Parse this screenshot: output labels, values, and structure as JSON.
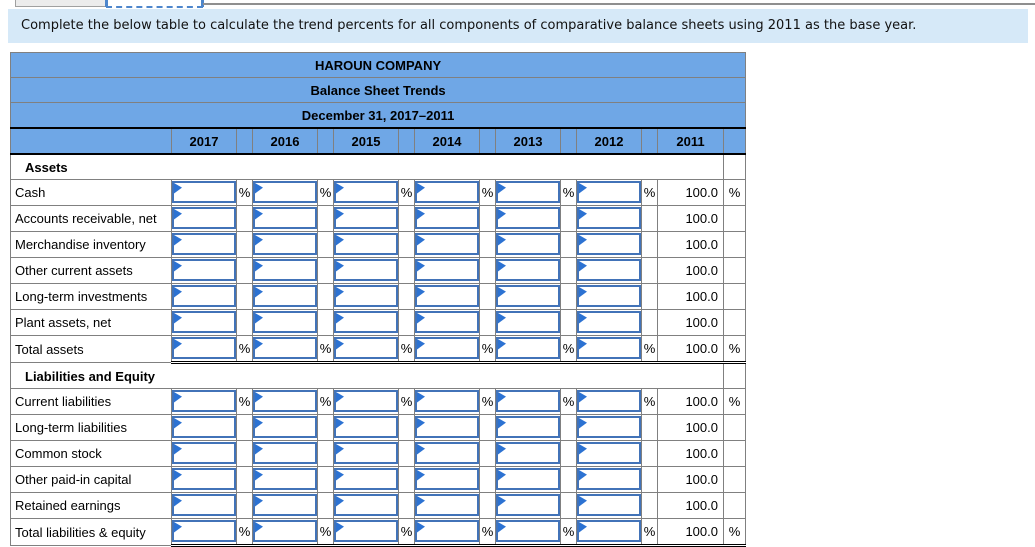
{
  "top_fragments": {
    "has_partial_panel": true,
    "has_dashed_selection": true,
    "divider_color": "#8f8f8f"
  },
  "instruction": {
    "text": "Complete the below table to calculate the trend percents for all components of comparative balance sheets using 2011 as the base year.",
    "background": "#d6e9f8"
  },
  "table": {
    "title": "HAROUN COMPANY",
    "subtitle": "Balance Sheet Trends",
    "period": "December 31, 2017–2011",
    "header_color": "#6fa7e6",
    "input_border_color": "#4273b8",
    "marker_color": "#2c72d2",
    "grid_color": "#808080",
    "years": [
      "2017",
      "2016",
      "2015",
      "2014",
      "2013",
      "2012",
      "2011"
    ],
    "input_years": [
      "2017",
      "2016",
      "2015",
      "2014",
      "2013",
      "2012"
    ],
    "base_year": "2011",
    "base_value": "100.0",
    "percent_symbol": "%",
    "input_value": "",
    "rows": [
      {
        "type": "section",
        "label": "Assets"
      },
      {
        "type": "data",
        "label": "Cash",
        "pct": true,
        "total": false
      },
      {
        "type": "data",
        "label": "Accounts receivable, net",
        "pct": false,
        "total": false
      },
      {
        "type": "data",
        "label": "Merchandise inventory",
        "pct": false,
        "total": false
      },
      {
        "type": "data",
        "label": "Other current assets",
        "pct": false,
        "total": false
      },
      {
        "type": "data",
        "label": "Long-term investments",
        "pct": false,
        "total": false
      },
      {
        "type": "data",
        "label": "Plant assets, net",
        "pct": false,
        "total": false
      },
      {
        "type": "data",
        "label": "Total assets",
        "pct": true,
        "total": true
      },
      {
        "type": "section",
        "label": "Liabilities and Equity"
      },
      {
        "type": "data",
        "label": "Current liabilities",
        "pct": true,
        "total": false
      },
      {
        "type": "data",
        "label": "Long-term liabilities",
        "pct": false,
        "total": false
      },
      {
        "type": "data",
        "label": "Common stock",
        "pct": false,
        "total": false
      },
      {
        "type": "data",
        "label": "Other paid-in capital",
        "pct": false,
        "total": false
      },
      {
        "type": "data",
        "label": "Retained earnings",
        "pct": false,
        "total": false
      },
      {
        "type": "data",
        "label": "Total liabilities & equity",
        "pct": true,
        "total": true
      }
    ]
  }
}
